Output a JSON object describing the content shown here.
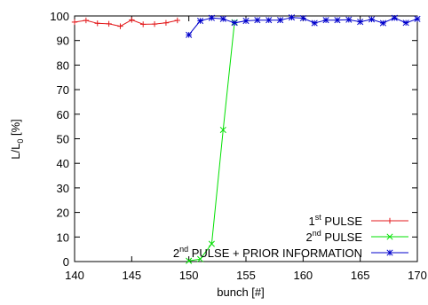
{
  "chart_data": {
    "type": "line",
    "title": "",
    "xlabel": "bunch [#]",
    "ylabel": {
      "main": "L/L",
      "sub": "0",
      "suffix": " [%]"
    },
    "xlim": [
      140,
      170
    ],
    "ylim": [
      0,
      100
    ],
    "xticks": [
      140,
      145,
      150,
      155,
      160,
      165,
      170
    ],
    "yticks": [
      0,
      10,
      20,
      30,
      40,
      50,
      60,
      70,
      80,
      90,
      100
    ],
    "grid": false,
    "legend_position": "bottom-right",
    "series": [
      {
        "name": {
          "base": "1",
          "sup": "st",
          "rest": " PULSE"
        },
        "color": "#e31a1c",
        "marker": "plus",
        "x": [
          140,
          141,
          142,
          143,
          144,
          145,
          146,
          147,
          148,
          149
        ],
        "y": [
          97.5,
          98.2,
          97.0,
          96.8,
          95.8,
          98.4,
          96.6,
          96.7,
          97.2,
          98.2
        ]
      },
      {
        "name": {
          "base": "2",
          "sup": "nd",
          "rest": " PULSE"
        },
        "color": "#00e000",
        "marker": "x",
        "x": [
          150,
          151,
          152,
          153,
          154
        ],
        "y": [
          0.3,
          1.0,
          7.2,
          53.6,
          97.4
        ]
      },
      {
        "name": {
          "base": "2",
          "sup": "nd",
          "rest": " PULSE + PRIOR INFORMATION"
        },
        "color": "#0000cc",
        "marker": "star",
        "x": [
          150,
          151,
          152,
          153,
          154,
          155,
          156,
          157,
          158,
          159,
          160,
          161,
          162,
          163,
          164,
          165,
          166,
          167,
          168,
          169,
          170
        ],
        "y": [
          92.3,
          98.0,
          99.2,
          98.8,
          97.2,
          98.0,
          98.3,
          98.3,
          98.3,
          99.4,
          99.1,
          97.1,
          98.3,
          98.3,
          98.5,
          97.6,
          98.6,
          97.1,
          99.2,
          97.2,
          98.8
        ]
      }
    ]
  }
}
